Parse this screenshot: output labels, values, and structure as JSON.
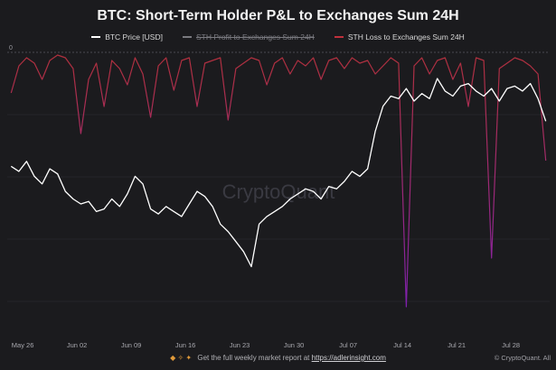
{
  "title": "BTC: Short-Term Holder P&L to Exchanges Sum 24H",
  "legend": {
    "price_label": "BTC Price [USD]",
    "profit_label": "STH Profit to Exchanges Sum 24H",
    "loss_label": "STH Loss to Exchanges Sum 24H"
  },
  "watermark": "CryptoQuant",
  "footer": {
    "emoji": "◆ ✧ ✦",
    "text": "Get the full weekly market report at",
    "link": "https://adlerinsight.com"
  },
  "copyright": "© CryptoQuant. All",
  "colors": {
    "background": "#1b1b1e",
    "price": "#ffffff",
    "loss_top": "#b0303c",
    "loss_bottom": "#7a1fb8",
    "gridline": "#3a3a40"
  },
  "chart_data": {
    "type": "line",
    "title": "BTC: Short-Term Holder P&L to Exchanges Sum 24H",
    "x_tick_labels": [
      "May 26",
      "Jun 02",
      "Jun 09",
      "Jun 16",
      "Jun 23",
      "Jun 30",
      "Jul 07",
      "Jul 14",
      "Jul 21",
      "Jul 28"
    ],
    "y_tick_labels_left": [
      "0"
    ],
    "x_range_days": [
      -2,
      68
    ],
    "grid": "horizontal dashed",
    "legend_position": "top-center",
    "series": [
      {
        "name": "BTC Price [USD]",
        "axis": "right",
        "y_range": [
          0,
          1
        ],
        "x": [
          -1.5,
          -0.5,
          0.5,
          1.5,
          2.5,
          3.5,
          4.5,
          5.5,
          6.5,
          7.5,
          8.5,
          9.5,
          10.5,
          11.5,
          12.5,
          13.5,
          14.5,
          15.5,
          16.5,
          17.5,
          18.5,
          19.5,
          20.5,
          21.5,
          22.5,
          23.5,
          24.5,
          25.5,
          26.5,
          27.5,
          28.5,
          29.5,
          30.5,
          31.5,
          32.5,
          33.5,
          34.5,
          35.5,
          36.5,
          37.5,
          38.5,
          39.5,
          40.5,
          41.5,
          42.5,
          43.5,
          44.5,
          45.5,
          46.5,
          47.5,
          48.5,
          49.5,
          50.5,
          51.5,
          52.5,
          53.5,
          54.5,
          55.5,
          56.5,
          57.5,
          58.5,
          59.5,
          60.5,
          61.5,
          62.5,
          63.5,
          64.5,
          65.5,
          66.5,
          67.5
        ],
        "values": [
          0.56,
          0.54,
          0.58,
          0.52,
          0.49,
          0.55,
          0.53,
          0.46,
          0.43,
          0.41,
          0.42,
          0.38,
          0.39,
          0.43,
          0.4,
          0.45,
          0.52,
          0.49,
          0.39,
          0.37,
          0.4,
          0.38,
          0.36,
          0.41,
          0.46,
          0.44,
          0.4,
          0.33,
          0.3,
          0.26,
          0.22,
          0.16,
          0.33,
          0.36,
          0.38,
          0.4,
          0.43,
          0.45,
          0.47,
          0.46,
          0.43,
          0.48,
          0.47,
          0.5,
          0.54,
          0.52,
          0.55,
          0.7,
          0.8,
          0.84,
          0.83,
          0.87,
          0.82,
          0.85,
          0.83,
          0.91,
          0.86,
          0.84,
          0.88,
          0.89,
          0.86,
          0.84,
          0.87,
          0.82,
          0.87,
          0.88,
          0.86,
          0.89,
          0.83,
          0.74
        ]
      },
      {
        "name": "STH Loss to Exchanges Sum 24H",
        "axis": "left",
        "y_range": [
          0,
          1
        ],
        "x": [
          -1.5,
          -0.5,
          0.5,
          1.5,
          2.5,
          3.5,
          4.5,
          5.5,
          6.5,
          7.5,
          8.5,
          9.5,
          10.5,
          11.5,
          12.5,
          13.5,
          14.5,
          15.5,
          16.5,
          17.5,
          18.5,
          19.5,
          20.5,
          21.5,
          22.5,
          23.5,
          24.5,
          25.5,
          26.5,
          27.5,
          28.5,
          29.5,
          30.5,
          31.5,
          32.5,
          33.5,
          34.5,
          35.5,
          36.5,
          37.5,
          38.5,
          39.5,
          40.5,
          41.5,
          42.5,
          43.5,
          44.5,
          45.5,
          46.5,
          47.5,
          48.5,
          49.5,
          50.5,
          51.5,
          52.5,
          53.5,
          54.5,
          55.5,
          56.5,
          57.5,
          58.5,
          59.5,
          60.5,
          61.5,
          62.5,
          63.5,
          64.5,
          65.5,
          66.5,
          67.5
        ],
        "values": [
          0.15,
          0.05,
          0.02,
          0.04,
          0.1,
          0.03,
          0.01,
          0.02,
          0.06,
          0.3,
          0.1,
          0.04,
          0.2,
          0.03,
          0.06,
          0.12,
          0.02,
          0.08,
          0.24,
          0.05,
          0.02,
          0.14,
          0.03,
          0.02,
          0.2,
          0.04,
          0.03,
          0.02,
          0.25,
          0.06,
          0.04,
          0.02,
          0.03,
          0.12,
          0.04,
          0.02,
          0.08,
          0.03,
          0.05,
          0.02,
          0.1,
          0.03,
          0.02,
          0.06,
          0.02,
          0.04,
          0.03,
          0.08,
          0.05,
          0.02,
          0.04,
          0.94,
          0.05,
          0.02,
          0.08,
          0.03,
          0.02,
          0.1,
          0.04,
          0.2,
          0.02,
          0.03,
          0.76,
          0.06,
          0.04,
          0.02,
          0.03,
          0.05,
          0.08,
          0.4
        ]
      }
    ]
  }
}
